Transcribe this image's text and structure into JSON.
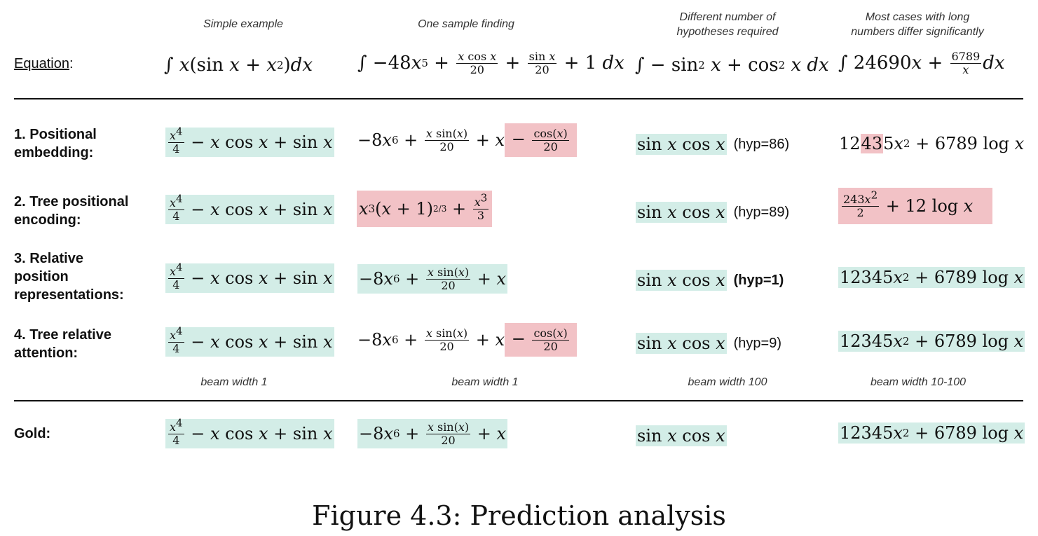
{
  "headers": {
    "col1": "Simple example",
    "col2": "One sample finding",
    "col3_line1": "Different number of",
    "col3_line2": "hypotheses required",
    "col4_line1": "Most cases with long",
    "col4_line2": "numbers differ significantly"
  },
  "equation_label": "Equation",
  "equation_colon": ":",
  "rows": [
    {
      "label_line1": "1. Positional",
      "label_line2": "embedding:",
      "hyp": "(hyp=86)"
    },
    {
      "label_line1": "2. Tree positional",
      "label_line2": "encoding:",
      "hyp": "(hyp=89)"
    },
    {
      "label_line1": "3. Relative",
      "label_line2": "position",
      "label_line3": "representations:",
      "hyp": "(hyp=1)"
    },
    {
      "label_line1": "4. Tree relative",
      "label_line2": "attention:",
      "hyp": "(hyp=9)"
    }
  ],
  "gold_label": "Gold:",
  "beam": {
    "col1": "beam width 1",
    "col2": "beam width 1",
    "col3": "beam width 100",
    "col4": "beam width 10-100"
  },
  "caption": "Figure 4.3: Prediction analysis",
  "colors": {
    "correct": "#d3ede7",
    "incorrect": "#f2c2c6"
  }
}
